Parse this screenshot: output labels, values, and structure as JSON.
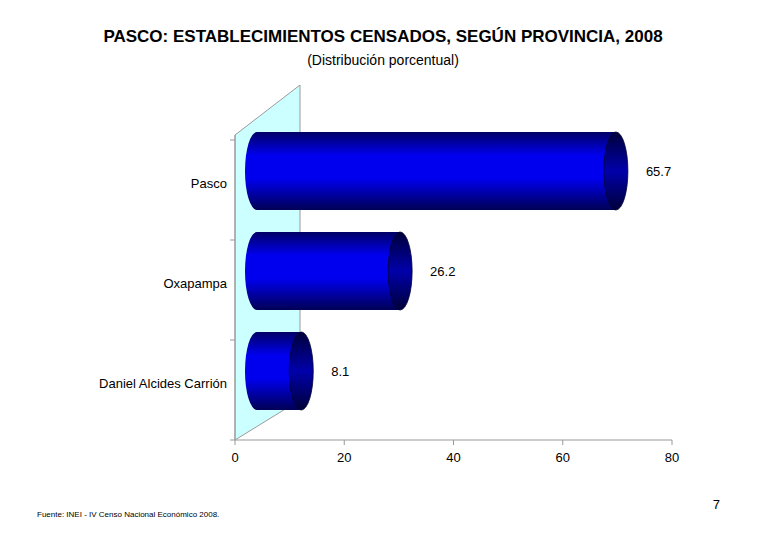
{
  "chart_data": {
    "type": "bar",
    "title": "PASCO: ESTABLECIMIENTOS CENSADOS, SEGÚN PROVINCIA, 2008",
    "subtitle": "(Distribución porcentual)",
    "categories": [
      "Pasco",
      "Oxapampa",
      "Daniel Alcides Carrión"
    ],
    "values": [
      65.7,
      26.2,
      8.1
    ],
    "color": "#0000ee",
    "orientation": "horizontal",
    "data_labels": true,
    "xlim": [
      0,
      80
    ],
    "xticks": [
      0,
      20,
      40,
      60,
      80
    ],
    "grid": false,
    "source": "Fuente: INEI - IV Censo Nacional Económico 2008.",
    "page": "7"
  }
}
